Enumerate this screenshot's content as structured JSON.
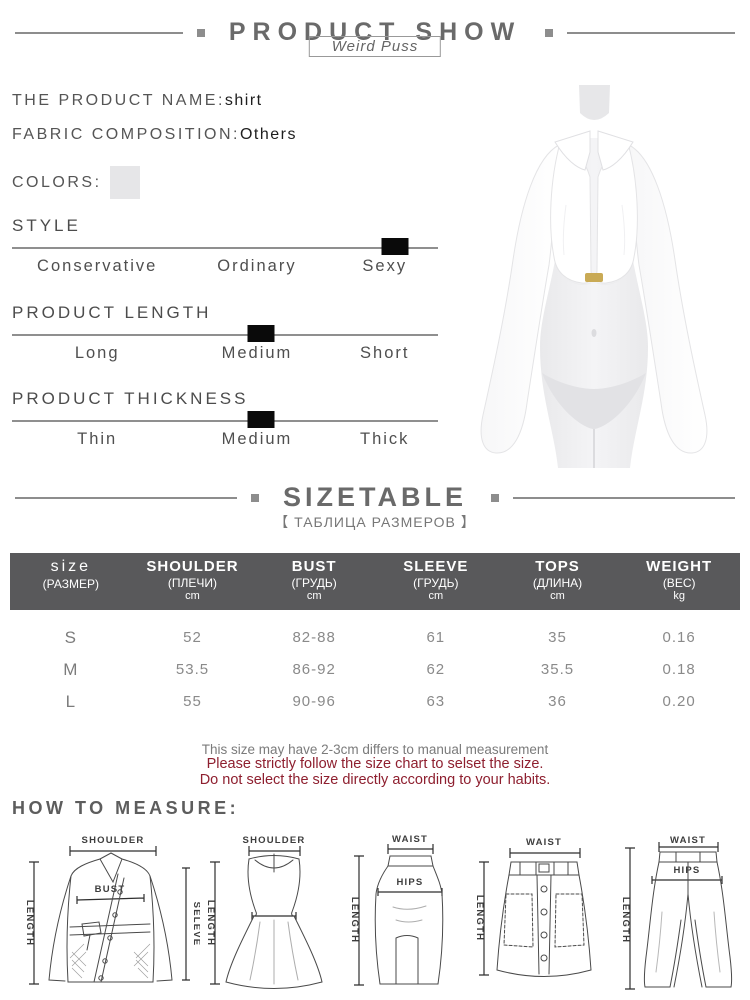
{
  "theme": {
    "text_gray": "#6a6a6a",
    "text_dark": "#1e1e1e",
    "line_gray": "#8f8f8f",
    "marker_black": "#0a0a0a",
    "table_header_bg": "#59595b",
    "table_header_text": "#ffffff",
    "note_red": "#8e1f2f",
    "swatch_color": "#e6e6e8"
  },
  "header": {
    "title": "PRODUCT SHOW",
    "brand": "Weird Puss"
  },
  "product": {
    "name_label": "THE PRODUCT NAME:",
    "name_value": "shirt",
    "fabric_label": "FABRIC COMPOSITION:",
    "fabric_value": "Others",
    "colors_label": "COLORS:"
  },
  "attributes": [
    {
      "label": "STYLE",
      "options": [
        "Conservative",
        "Ordinary",
        "Sexy"
      ],
      "selected_index": 2
    },
    {
      "label": "PRODUCT LENGTH",
      "options": [
        "Long",
        "Medium",
        "Short"
      ],
      "selected_index": 1
    },
    {
      "label": "PRODUCT THICKNESS",
      "options": [
        "Thin",
        "Medium",
        "Thick"
      ],
      "selected_index": 1
    }
  ],
  "sizetable": {
    "title": "SIZETABLE",
    "subtitle": "【 ТАБЛИЦА РАЗМЕРОВ 】",
    "columns": [
      {
        "en": "size",
        "sub": "(РАЗМЕР)",
        "unit": ""
      },
      {
        "en": "SHOULDER",
        "sub": "(ПЛЕЧИ)",
        "unit": "cm"
      },
      {
        "en": "BUST",
        "sub": "(ГРУДЬ)",
        "unit": "cm"
      },
      {
        "en": "SLEEVE",
        "sub": "(ГРУДЬ)",
        "unit": "cm"
      },
      {
        "en": "TOPS",
        "sub": "(ДЛИНА)",
        "unit": "cm"
      },
      {
        "en": "WEIGHT",
        "sub": "(ВЕС)",
        "unit": "kg"
      }
    ],
    "rows": [
      [
        "S",
        "52",
        "82-88",
        "61",
        "35",
        "0.16"
      ],
      [
        "M",
        "53.5",
        "86-92",
        "62",
        "35.5",
        "0.18"
      ],
      [
        "L",
        "55",
        "90-96",
        "63",
        "36",
        "0.20"
      ]
    ]
  },
  "notes": {
    "measure": "This size may have 2-3cm differs to manual measurement",
    "red1": "Please strictly follow the size chart to selset the size.",
    "red2": "Do not select the size directly according to your habits."
  },
  "measure": {
    "title": "HOW TO MEASURE:",
    "diagrams": [
      {
        "name": "coat",
        "labels": {
          "top": "SHOULDER",
          "left": "LENGTH",
          "mid": "BUST",
          "right": "SELEVE"
        }
      },
      {
        "name": "dress",
        "labels": {
          "top": "SHOULDER",
          "left": "LENGTH",
          "mid": "WAIST"
        }
      },
      {
        "name": "pencil-skirt",
        "labels": {
          "top": "WAIST",
          "left": "LENGTH",
          "mid": "HIPS"
        }
      },
      {
        "name": "mini-skirt",
        "labels": {
          "top": "WAIST",
          "left": "LENGTH"
        }
      },
      {
        "name": "pants",
        "labels": {
          "top": "WAIST",
          "left": "LENGTH",
          "mid": "HIPS"
        }
      }
    ]
  }
}
